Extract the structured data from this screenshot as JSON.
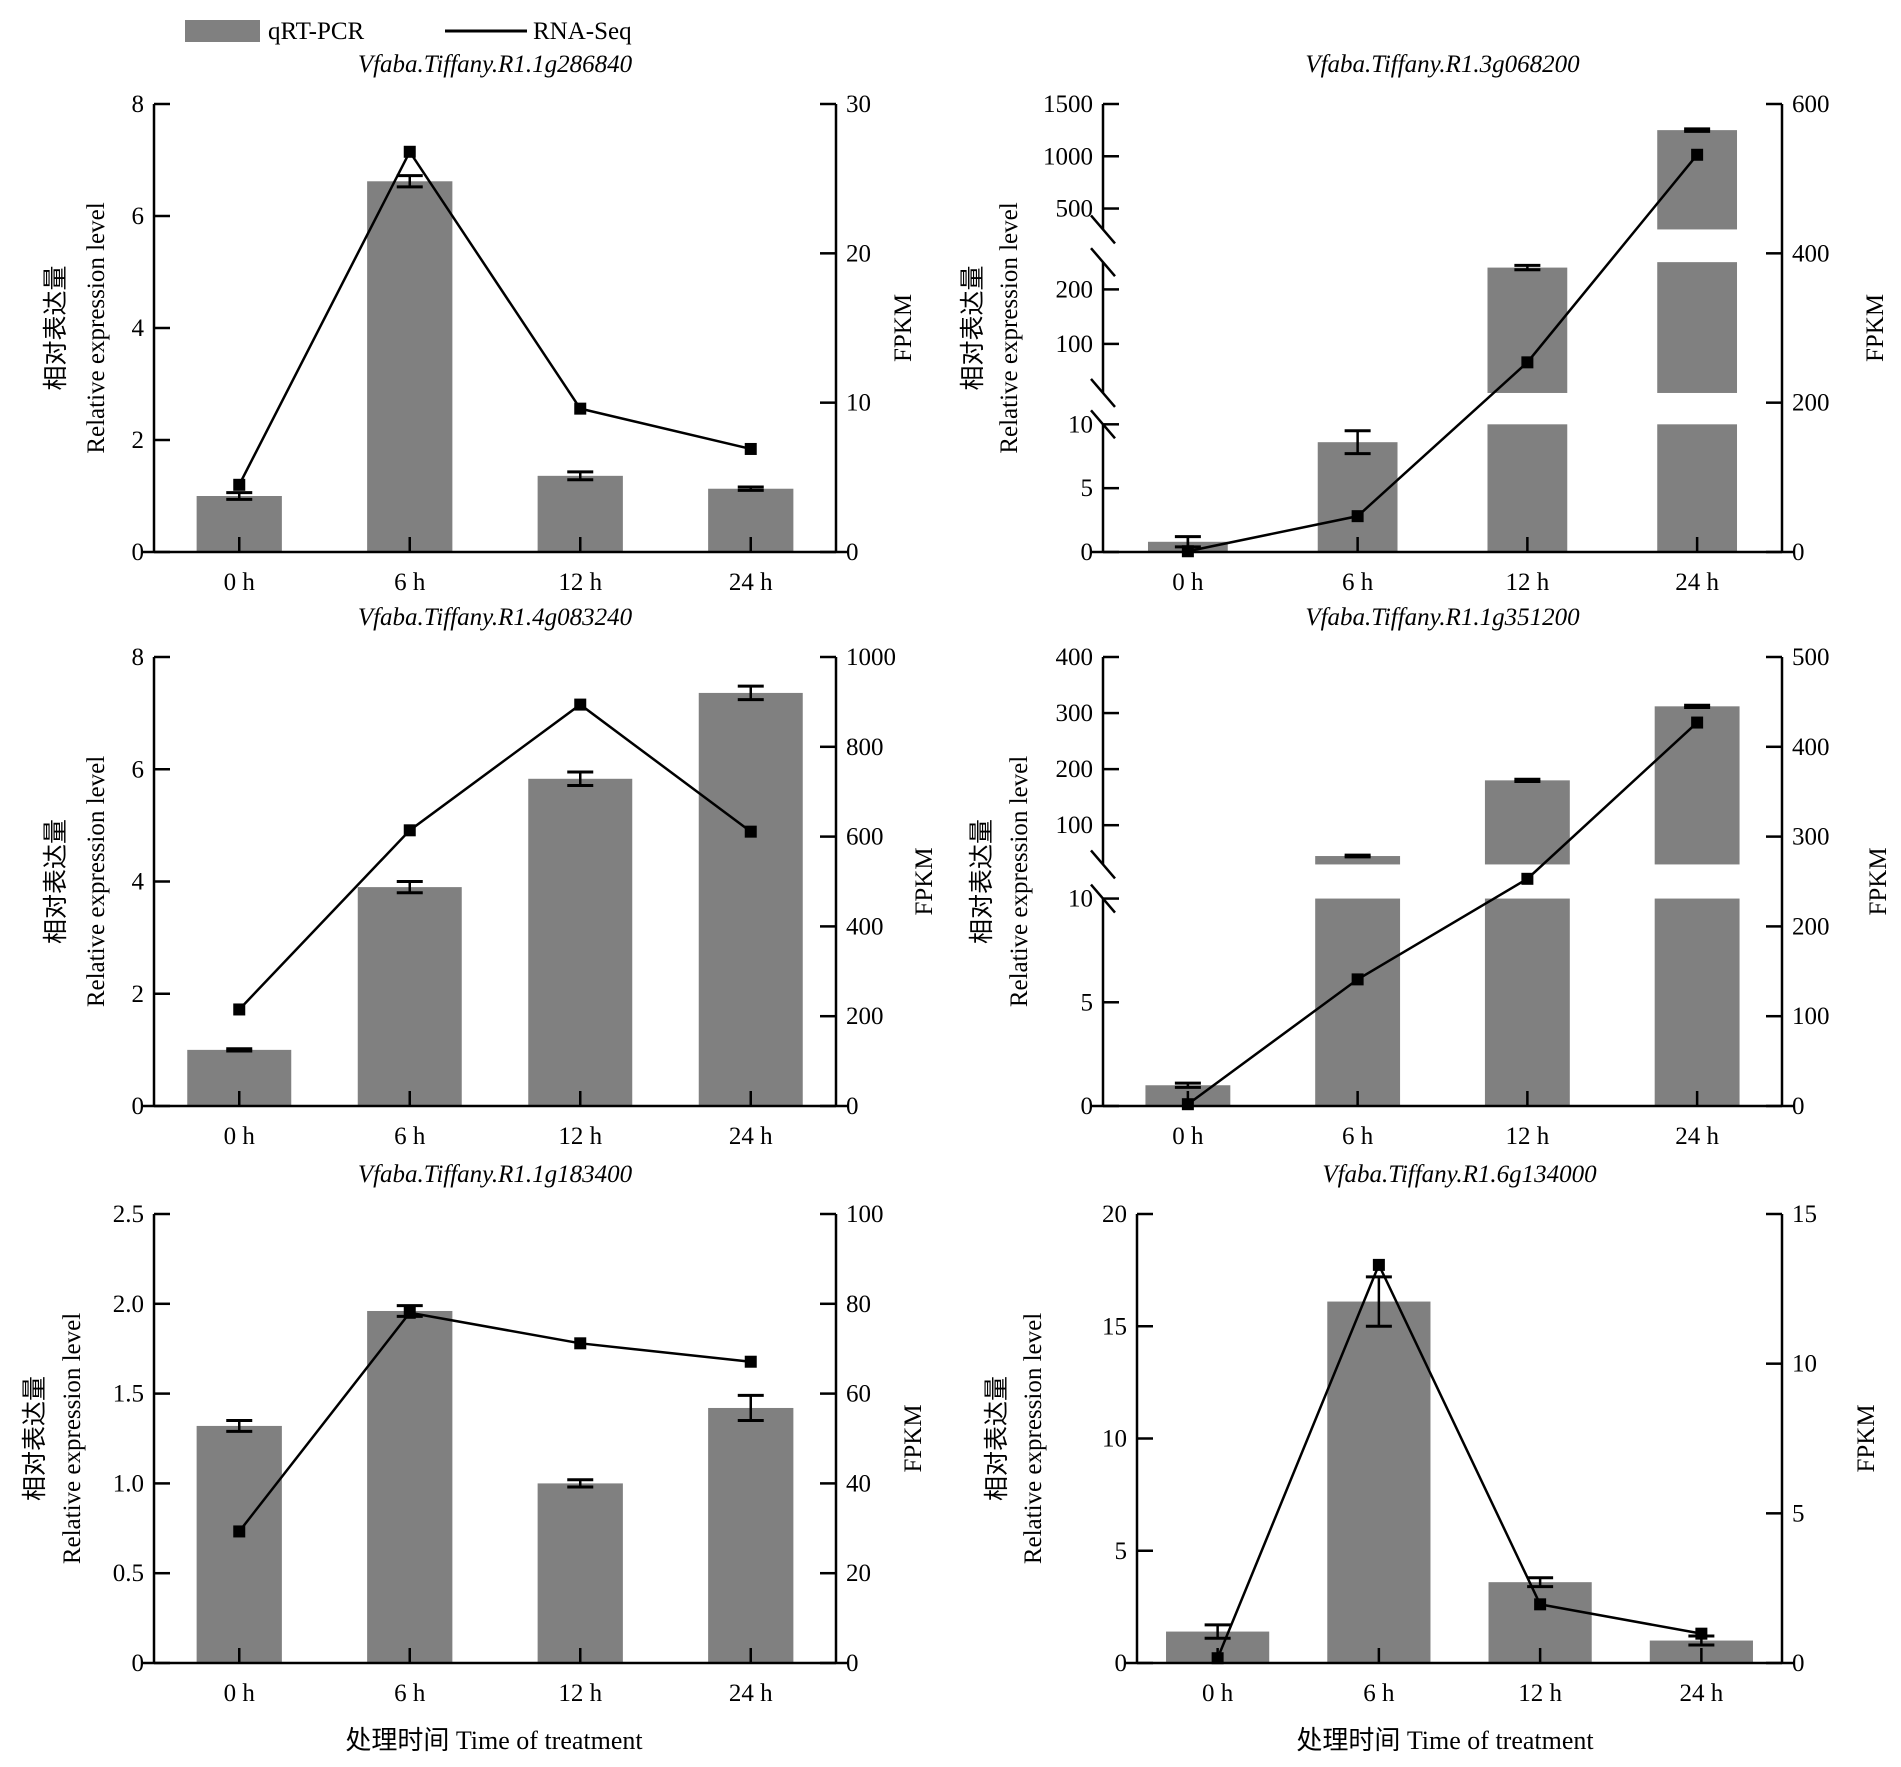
{
  "legend": {
    "bar_label": "qRT-PCR",
    "line_label": "RNA-Seq",
    "bar_color": "#808080",
    "line_color": "#000000"
  },
  "axis_labels": {
    "y_left_cn": "相对表达量",
    "y_left_en": "Relative expression level",
    "y_right": "FPKM",
    "x": "处理时间 Time of treatment"
  },
  "chart_data": [
    {
      "type": "bar+line",
      "title": "Vfaba.Tiffany.R1.1g286840",
      "categories": [
        "0 h",
        "6 h",
        "12 h",
        "24 h"
      ],
      "series": [
        {
          "name": "qRT-PCR",
          "axis": "left",
          "values": [
            1.0,
            6.62,
            1.36,
            1.13
          ],
          "errors": [
            0.06,
            0.1,
            0.07,
            0.03
          ]
        },
        {
          "name": "RNA-Seq",
          "axis": "right",
          "values": [
            4.5,
            26.8,
            9.6,
            6.9
          ]
        }
      ],
      "ylim": [
        0,
        8
      ],
      "yticks": [
        0,
        2,
        4,
        6,
        8
      ],
      "y2lim": [
        0,
        30
      ],
      "y2ticks": [
        0,
        10,
        20,
        30
      ],
      "segments": null,
      "show_xlabel": false
    },
    {
      "type": "bar+line",
      "title": "Vfaba.Tiffany.R1.3g068200",
      "categories": [
        "0 h",
        "6 h",
        "12 h",
        "24 h"
      ],
      "series": [
        {
          "name": "qRT-PCR",
          "axis": "left",
          "values": [
            0.8,
            8.6,
            240,
            1250
          ],
          "errors": [
            0.4,
            0.9,
            4,
            12
          ]
        },
        {
          "name": "RNA-Seq",
          "axis": "right",
          "values": [
            1,
            48,
            254,
            532
          ]
        }
      ],
      "ylim": [
        0,
        1500
      ],
      "yticks": [
        0,
        5,
        10,
        100,
        200,
        500,
        1000,
        1500
      ],
      "y2lim": [
        0,
        600
      ],
      "y2ticks": [
        0,
        200,
        400,
        600
      ],
      "segments": [
        [
          0,
          10
        ],
        [
          10,
          250
        ],
        [
          300,
          1500
        ]
      ],
      "show_xlabel": false
    },
    {
      "type": "bar+line",
      "title": "Vfaba.Tiffany.R1.4g083240",
      "categories": [
        "0 h",
        "6 h",
        "12 h",
        "24 h"
      ],
      "series": [
        {
          "name": "qRT-PCR",
          "axis": "left",
          "values": [
            1.0,
            3.9,
            5.83,
            7.36
          ],
          "errors": [
            0.02,
            0.1,
            0.12,
            0.12
          ]
        },
        {
          "name": "RNA-Seq",
          "axis": "right",
          "values": [
            215,
            614,
            894,
            611
          ]
        }
      ],
      "ylim": [
        0,
        8
      ],
      "yticks": [
        0,
        2,
        4,
        6,
        8
      ],
      "y2lim": [
        0,
        1000
      ],
      "y2ticks": [
        0,
        200,
        400,
        600,
        800,
        1000
      ],
      "segments": null,
      "show_xlabel": false
    },
    {
      "type": "bar+line",
      "title": "Vfaba.Tiffany.R1.1g351200",
      "categories": [
        "0 h",
        "6 h",
        "12 h",
        "24 h"
      ],
      "series": [
        {
          "name": "qRT-PCR",
          "axis": "left",
          "values": [
            1.0,
            45,
            180,
            312
          ],
          "errors": [
            0.1,
            1.5,
            2,
            2
          ]
        },
        {
          "name": "RNA-Seq",
          "axis": "right",
          "values": [
            2,
            141,
            253,
            427
          ]
        }
      ],
      "ylim": [
        0,
        400
      ],
      "yticks": [
        0,
        5,
        10,
        100,
        200,
        300,
        400
      ],
      "y2lim": [
        0,
        500
      ],
      "y2ticks": [
        0,
        100,
        200,
        300,
        400,
        500
      ],
      "segments": [
        [
          0,
          10
        ],
        [
          30,
          400
        ]
      ],
      "show_xlabel": false
    },
    {
      "type": "bar+line",
      "title": "Vfaba.Tiffany.R1.1g183400",
      "categories": [
        "0 h",
        "6 h",
        "12 h",
        "24 h"
      ],
      "series": [
        {
          "name": "qRT-PCR",
          "axis": "left",
          "values": [
            1.32,
            1.96,
            1.0,
            1.42
          ],
          "errors": [
            0.03,
            0.03,
            0.02,
            0.07
          ]
        },
        {
          "name": "RNA-Seq",
          "axis": "right",
          "values": [
            29.3,
            78,
            71.2,
            67.1
          ]
        }
      ],
      "ylim": [
        0,
        2.5
      ],
      "yticks": [
        0,
        0.5,
        1.0,
        1.5,
        2.0,
        2.5
      ],
      "ytick_labels": [
        "0",
        "0.5",
        "1.0",
        "1.5",
        "2.0",
        "2.5"
      ],
      "y2lim": [
        0,
        100
      ],
      "y2ticks": [
        0,
        20,
        40,
        60,
        80,
        100
      ],
      "segments": null,
      "show_xlabel": true
    },
    {
      "type": "bar+line",
      "title": "Vfaba.Tiffany.R1.6g134000",
      "categories": [
        "0 h",
        "6 h",
        "12 h",
        "24 h"
      ],
      "series": [
        {
          "name": "qRT-PCR",
          "axis": "left",
          "values": [
            1.4,
            16.1,
            3.6,
            1.0
          ],
          "errors": [
            0.3,
            1.1,
            0.2,
            0.2
          ]
        },
        {
          "name": "RNA-Seq",
          "axis": "right",
          "values": [
            0.16,
            13.3,
            1.96,
            0.98
          ]
        }
      ],
      "ylim": [
        0,
        20
      ],
      "yticks": [
        0,
        5,
        10,
        15,
        20
      ],
      "y2lim": [
        0,
        15
      ],
      "y2ticks": [
        0,
        5,
        10,
        15
      ],
      "segments": null,
      "show_xlabel": true
    }
  ]
}
